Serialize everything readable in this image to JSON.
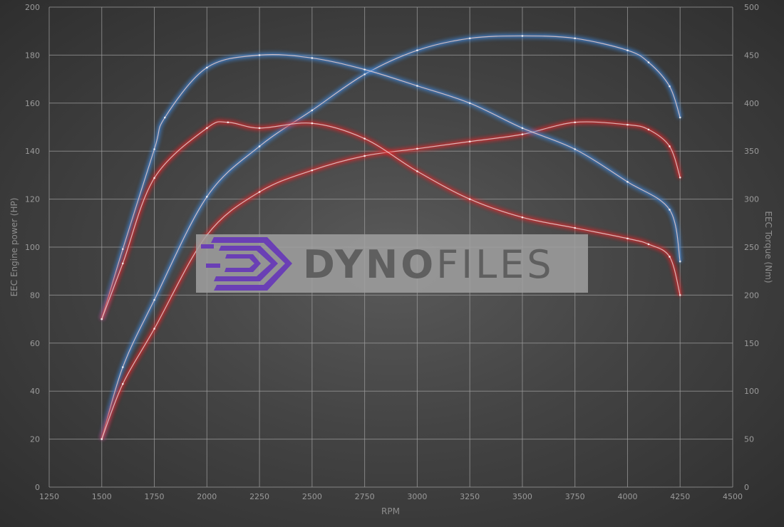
{
  "chart_data": {
    "type": "line",
    "xlabel": "RPM",
    "ylabel_left": "EEC Engine power (HP)",
    "ylabel_right": "EEC Torque (Nm)",
    "xlim": [
      1250,
      4500
    ],
    "ylim_left": [
      0,
      200
    ],
    "ylim_right": [
      0,
      500
    ],
    "x_ticks": [
      1250,
      1500,
      1750,
      2000,
      2250,
      2500,
      2750,
      3000,
      3250,
      3500,
      3750,
      4000,
      4250,
      4500
    ],
    "y_left_ticks": [
      0,
      20,
      40,
      60,
      80,
      100,
      120,
      140,
      160,
      180,
      200
    ],
    "y_right_ticks": [
      0,
      50,
      100,
      150,
      200,
      250,
      300,
      350,
      400,
      450,
      500
    ],
    "grid": true,
    "series": [
      {
        "axis": "left",
        "color": "#3f86d8",
        "x": [
          1500,
          1600,
          1750,
          2000,
          2250,
          2500,
          2750,
          3000,
          3250,
          3500,
          3750,
          4000,
          4100,
          4200,
          4250
        ],
        "y": [
          20,
          50,
          78,
          121,
          142,
          157,
          172,
          182,
          187,
          188,
          187,
          182,
          177,
          167,
          154
        ]
      },
      {
        "axis": "left",
        "color": "#e0282c",
        "x": [
          1500,
          1600,
          1750,
          2000,
          2250,
          2500,
          2750,
          3000,
          3250,
          3500,
          3750,
          4000,
          4100,
          4200,
          4250
        ],
        "y": [
          20,
          43,
          66,
          105,
          123,
          132,
          138,
          141,
          144,
          147,
          152,
          151,
          149,
          142,
          129
        ]
      },
      {
        "axis": "right",
        "color": "#3f86d8",
        "x": [
          1500,
          1600,
          1750,
          1800,
          2000,
          2250,
          2500,
          2750,
          3000,
          3250,
          3500,
          3750,
          4000,
          4200,
          4250
        ],
        "y": [
          175,
          248,
          352,
          385,
          437,
          450,
          447,
          435,
          418,
          400,
          374,
          352,
          318,
          289,
          235
        ]
      },
      {
        "axis": "right",
        "color": "#e0282c",
        "x": [
          1500,
          1600,
          1750,
          2000,
          2100,
          2250,
          2500,
          2750,
          3000,
          3250,
          3500,
          3750,
          4000,
          4100,
          4200,
          4250
        ],
        "y": [
          175,
          233,
          322,
          374,
          380,
          374,
          379,
          363,
          329,
          300,
          281,
          270,
          259,
          253,
          240,
          200
        ]
      }
    ]
  },
  "watermark": {
    "logo_text_bold": "DYNO",
    "logo_text_light": "FILES",
    "logo_color": "#6a3fb5"
  }
}
